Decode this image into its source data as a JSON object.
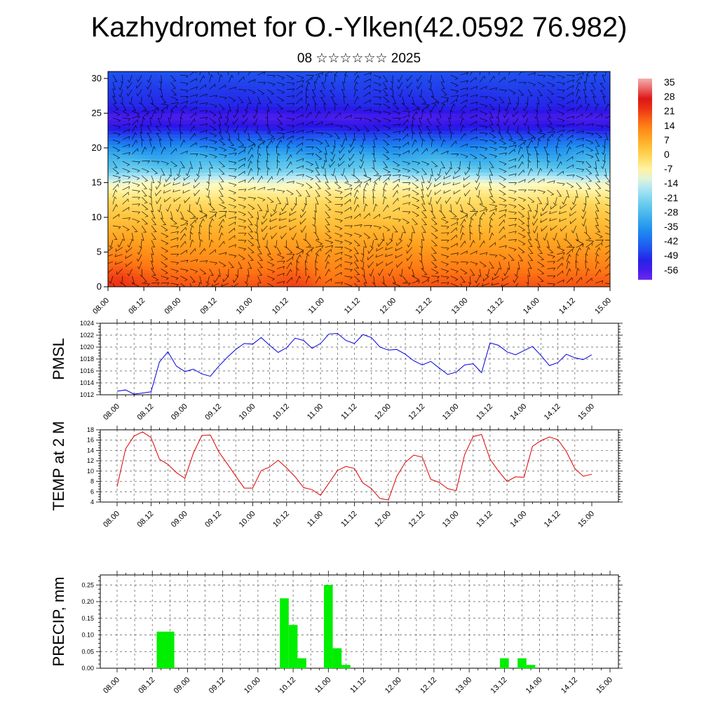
{
  "header": {
    "title": "Kazhydromet for O.-Ylken(42.0592 76.982)",
    "subtitle": "08 ☆☆☆☆☆☆ 2025"
  },
  "colors": {
    "pmsl_line": "#0000dd",
    "temp_line": "#dd0000",
    "precip_bar": "#00ee00",
    "grid": "#555555"
  },
  "chart_data": [
    {
      "type": "heatmap",
      "title": "",
      "xlabel": "",
      "ylabel": "",
      "x_tick_labels": [
        "08.00",
        "08.12",
        "09.00",
        "09.12",
        "10.00",
        "10.12",
        "11.00",
        "11.12",
        "12.00",
        "12.12",
        "13.00",
        "13.12",
        "14.00",
        "14.12",
        "15.00"
      ],
      "y_ticks": [
        0,
        5,
        10,
        15,
        20,
        25,
        30
      ],
      "ylim": [
        0,
        31
      ],
      "colorbar_labels": [
        "35",
        "28",
        "21",
        "14",
        "7",
        "0",
        "-7",
        "-14",
        "-21",
        "-28",
        "-35",
        "-42",
        "-49",
        "-56"
      ],
      "colorbar_range": [
        -60,
        38
      ],
      "overlay": "wind barbs",
      "temperature_profile": [
        {
          "level": 0,
          "value": 20
        },
        {
          "level": 3,
          "value": 15
        },
        {
          "level": 8,
          "value": 7
        },
        {
          "level": 12,
          "value": 0
        },
        {
          "level": 15,
          "value": -9
        },
        {
          "level": 17,
          "value": -24
        },
        {
          "level": 20,
          "value": -35
        },
        {
          "level": 23,
          "value": -52
        },
        {
          "level": 24.5,
          "value": -56
        },
        {
          "level": 26,
          "value": -50
        },
        {
          "level": 31,
          "value": -45
        }
      ],
      "warm_spots": [
        {
          "time": "08.06",
          "value": 24
        },
        {
          "time": "09.06",
          "value": 21
        },
        {
          "time": "13.06",
          "value": 22
        },
        {
          "time": "14.06",
          "value": 18
        }
      ]
    },
    {
      "type": "line",
      "title": "",
      "xlabel": "",
      "ylabel": "PMSL",
      "x_tick_labels": [
        "08.00",
        "08.12",
        "09.00",
        "09.12",
        "10.00",
        "10.12",
        "11.00",
        "11.12",
        "12.00",
        "12.12",
        "13.00",
        "13.12",
        "14.00",
        "14.12",
        "15.00"
      ],
      "y_ticks": [
        1012,
        1014,
        1016,
        1018,
        1020,
        1022,
        1024
      ],
      "ylim": [
        1012,
        1024
      ],
      "series": [
        {
          "values": [
            1012.6,
            1012.8,
            1012.1,
            1012.3,
            1012.5,
            1017.5,
            1019.2,
            1016.8,
            1015.9,
            1016.3,
            1015.5,
            1015.1,
            1016.8,
            1018.3,
            1019.6,
            1020.6,
            1020.5,
            1021.6,
            1020.3,
            1019.1,
            1019.9,
            1021.5,
            1021.1,
            1019.8,
            1020.6,
            1022.2,
            1022.3,
            1021.1,
            1020.6,
            1022.1,
            1021.6,
            1020.0,
            1019.5,
            1019.6,
            1018.8,
            1017.7,
            1017.0,
            1017.6,
            1016.5,
            1015.4,
            1015.8,
            1017.0,
            1017.2,
            1015.7,
            1020.7,
            1020.3,
            1019.2,
            1018.7,
            1019.4,
            1020.1,
            1018.6,
            1016.9,
            1017.4,
            1018.8,
            1018.2,
            1017.9,
            1018.7
          ]
        }
      ]
    },
    {
      "type": "line",
      "title": "",
      "xlabel": "",
      "ylabel": "TEMP at 2 M",
      "x_tick_labels": [
        "08.00",
        "08.12",
        "09.00",
        "09.12",
        "10.00",
        "10.12",
        "11.00",
        "11.12",
        "12.00",
        "12.12",
        "13.00",
        "13.12",
        "14.00",
        "14.12",
        "15.00"
      ],
      "y_ticks": [
        4,
        6,
        8,
        10,
        12,
        14,
        16,
        18
      ],
      "ylim": [
        4,
        18
      ],
      "series": [
        {
          "values": [
            7.0,
            14.3,
            16.8,
            17.6,
            16.5,
            12.3,
            11.3,
            9.7,
            8.6,
            13.5,
            16.9,
            17.0,
            13.7,
            11.4,
            9.0,
            6.7,
            6.7,
            10.1,
            10.8,
            12.1,
            10.6,
            8.9,
            6.8,
            6.4,
            5.3,
            7.7,
            10.1,
            10.9,
            10.5,
            7.7,
            6.6,
            4.7,
            4.4,
            9.0,
            11.7,
            13.1,
            12.7,
            8.4,
            7.8,
            6.6,
            6.2,
            13.2,
            16.7,
            17.1,
            12.3,
            10.0,
            8.0,
            8.9,
            8.8,
            14.8,
            15.9,
            16.6,
            16.1,
            13.8,
            10.5,
            9.0,
            9.4
          ]
        }
      ]
    },
    {
      "type": "bar",
      "title": "",
      "xlabel": "",
      "ylabel": "PRECIP, mm",
      "x_tick_labels": [
        "08.00",
        "08.12",
        "09.00",
        "09.12",
        "10.00",
        "10.12",
        "11.00",
        "11.12",
        "12.00",
        "12.12",
        "13.00",
        "13.12",
        "14.00",
        "14.12",
        "15.00"
      ],
      "y_ticks": [
        0.0,
        0.05,
        0.1,
        0.15,
        0.2,
        0.25
      ],
      "y_tick_labels": [
        "0.00",
        "0.05",
        "0.10",
        "0.15",
        "0.20",
        "0.25"
      ],
      "ylim": [
        0,
        0.28
      ],
      "series": [
        {
          "values": [
            0,
            0,
            0,
            0,
            0,
            0.11,
            0.11,
            0,
            0,
            0,
            0,
            0,
            0,
            0,
            0,
            0,
            0,
            0,
            0,
            0.21,
            0.13,
            0.03,
            0,
            0,
            0.25,
            0.06,
            0.01,
            0,
            0,
            0,
            0,
            0,
            0,
            0,
            0,
            0,
            0,
            0,
            0,
            0,
            0,
            0,
            0,
            0,
            0.03,
            0,
            0.03,
            0.01,
            0,
            0,
            0,
            0,
            0,
            0,
            0,
            0,
            0
          ]
        }
      ]
    }
  ]
}
